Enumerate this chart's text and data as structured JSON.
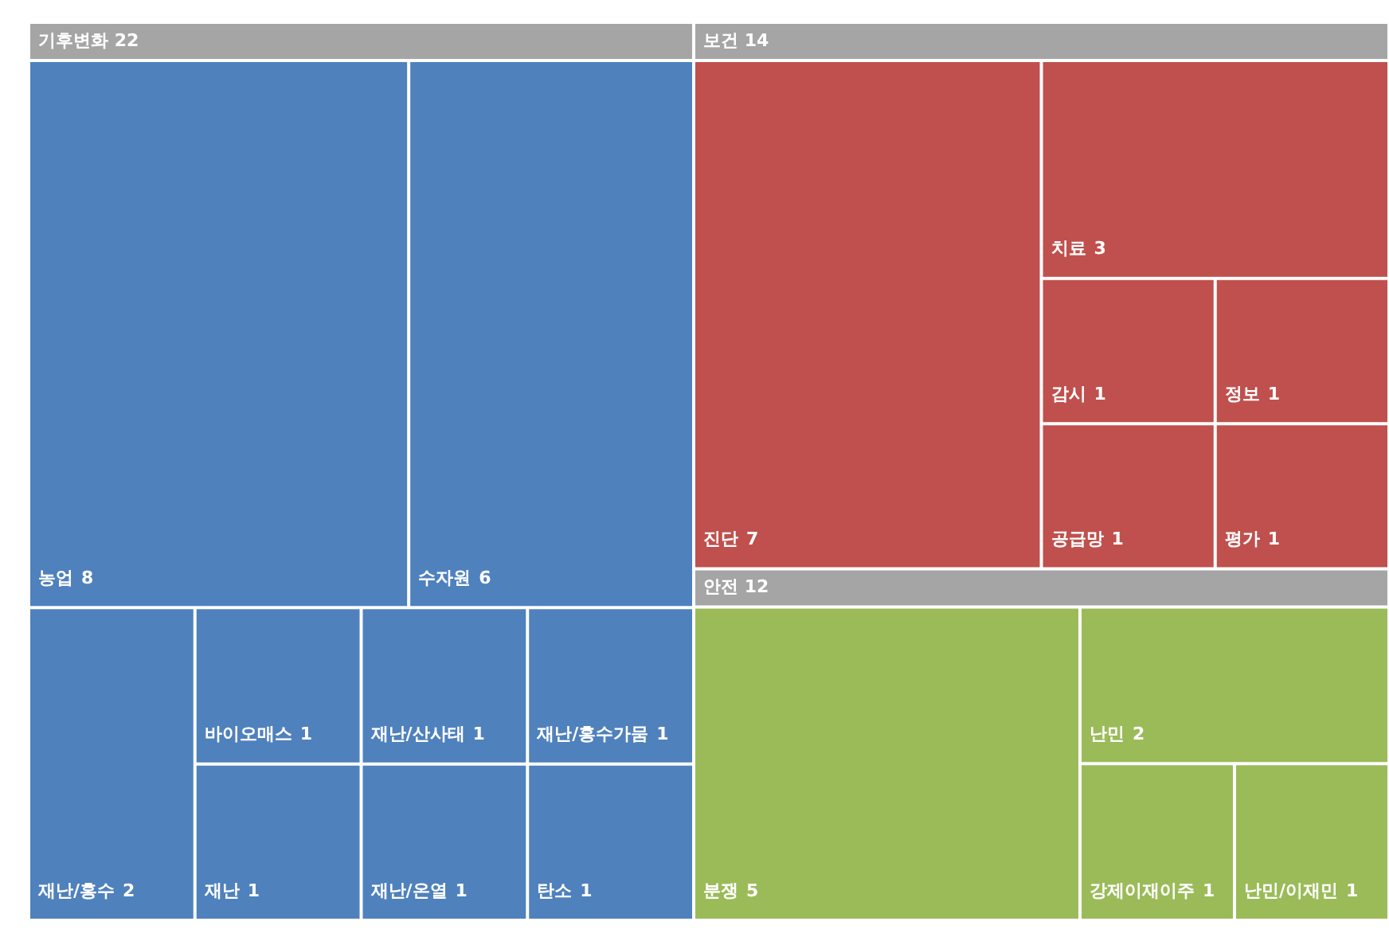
{
  "chart_data": {
    "type": "other",
    "data_labels": true,
    "totals": [
      "22",
      "14",
      "12"
    ],
    "categories": [
      "농업",
      "수자원",
      "재난/홍수",
      "바이오매스",
      "재난",
      "재난/산사태",
      "재난/온열",
      "재난/홍수가뭄",
      "탄소",
      "진단",
      "치료",
      "감시",
      "공급망",
      "정보",
      "평가",
      "분쟁",
      "난민",
      "강제이재이주",
      "난민/이재민"
    ],
    "series": [
      {
        "name": "기후변화",
        "color": "#4f81bd",
        "values": [
          8,
          6,
          2,
          1,
          1,
          1,
          1,
          1,
          1,
          null,
          null,
          null,
          null,
          null,
          null,
          null,
          null,
          null,
          null
        ]
      },
      {
        "name": "보건",
        "color": "#c0504d",
        "values": [
          null,
          null,
          null,
          null,
          null,
          null,
          null,
          null,
          null,
          7,
          3,
          1,
          1,
          1,
          1,
          null,
          null,
          null,
          null
        ]
      },
      {
        "name": "안전",
        "color": "#9bbb59",
        "values": [
          null,
          null,
          null,
          null,
          null,
          null,
          null,
          null,
          null,
          null,
          null,
          null,
          null,
          null,
          null,
          5,
          2,
          1,
          1
        ]
      }
    ]
  }
}
